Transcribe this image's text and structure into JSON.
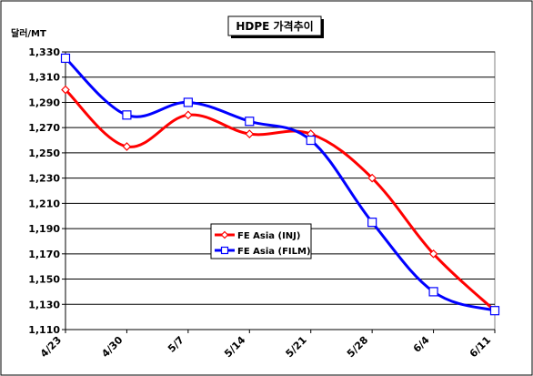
{
  "chart_data": {
    "type": "line",
    "title": "HDPE 가격추이",
    "ylabel": "달러/MT",
    "xlabel": "",
    "categories": [
      "4/23",
      "4/30",
      "5/7",
      "5/14",
      "5/21",
      "5/28",
      "6/4",
      "6/11"
    ],
    "ylim": [
      1110,
      1330
    ],
    "yticks": [
      1110,
      1130,
      1150,
      1170,
      1190,
      1210,
      1230,
      1250,
      1270,
      1290,
      1310,
      1330
    ],
    "yticks_labels": [
      "1,110",
      "1,130",
      "1,150",
      "1,170",
      "1,190",
      "1,210",
      "1,230",
      "1,250",
      "1,270",
      "1,290",
      "1,310",
      "1,330"
    ],
    "grid": true,
    "legend_position": "center",
    "series": [
      {
        "name": "FE Asia (INJ)",
        "color": "#ff0000",
        "marker": "diamond",
        "values": [
          1300,
          1255,
          1280,
          1265,
          1265,
          1230,
          1170,
          1125
        ]
      },
      {
        "name": "FE Asia (FILM)",
        "color": "#0000ff",
        "marker": "square",
        "values": [
          1325,
          1280,
          1290,
          1275,
          1260,
          1195,
          1140,
          1125
        ]
      }
    ]
  }
}
